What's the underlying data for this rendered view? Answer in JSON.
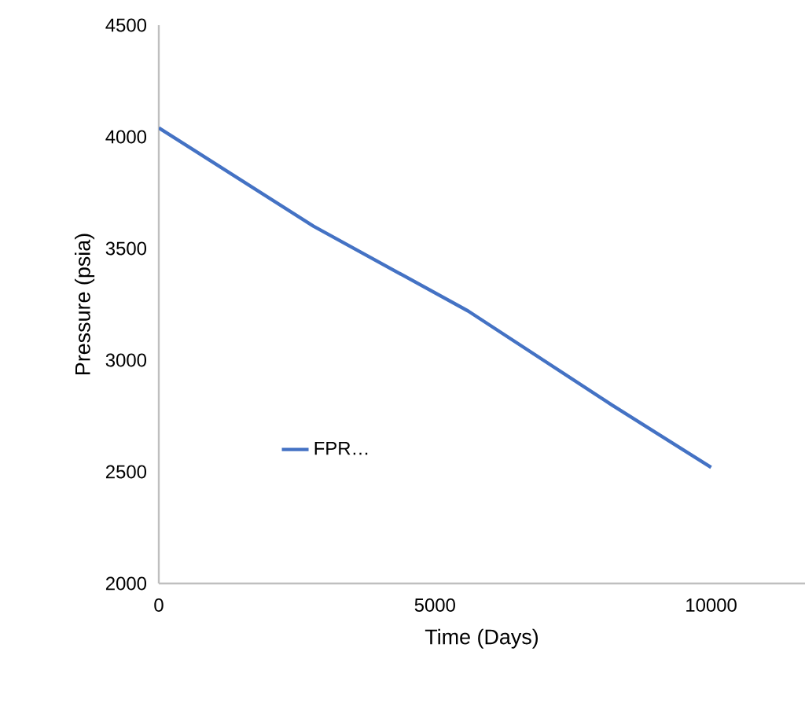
{
  "chart_data": {
    "type": "line",
    "xlabel": "Time (Days)",
    "ylabel": "Pressure (psia)",
    "xlim": [
      0,
      11700
    ],
    "xticks": [
      0,
      5000,
      10000
    ],
    "ylim": [
      2000,
      4500
    ],
    "yticks": [
      2000,
      2500,
      3000,
      3500,
      4000,
      4500
    ],
    "grid": false,
    "legend": "left",
    "marker": "none",
    "line_style": "solid",
    "x": [
      0,
      2800,
      5600,
      8200,
      10000
    ],
    "series": [
      {
        "name": "FPR…",
        "color": "#4472c4",
        "values": [
          4040,
          3600,
          3220,
          2800,
          2520
        ]
      }
    ]
  }
}
